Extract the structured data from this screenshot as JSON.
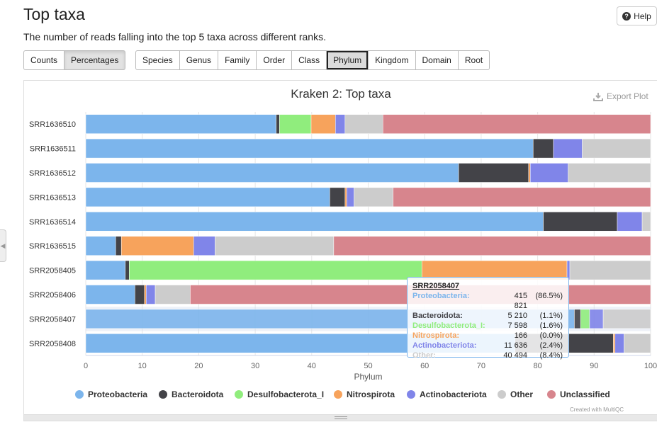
{
  "page": {
    "title": "Top taxa",
    "subtitle": "The number of reads falling into the top 5 taxa across different ranks.",
    "help_label": "Help"
  },
  "mode_buttons": [
    {
      "label": "Counts",
      "active": false
    },
    {
      "label": "Percentages",
      "active": true
    }
  ],
  "rank_buttons": [
    {
      "label": "Species",
      "active": false
    },
    {
      "label": "Genus",
      "active": false
    },
    {
      "label": "Family",
      "active": false
    },
    {
      "label": "Order",
      "active": false
    },
    {
      "label": "Class",
      "active": false
    },
    {
      "label": "Phylum",
      "active": true
    },
    {
      "label": "Kingdom",
      "active": false
    },
    {
      "label": "Domain",
      "active": false
    },
    {
      "label": "Root",
      "active": false
    }
  ],
  "export_label": "Export Plot",
  "credit": "Created with MultiQC",
  "colors": {
    "Proteobacteria": "#7cb5ec",
    "Bacteroidota": "#434348",
    "Desulfobacterota_I": "#90ed7d",
    "Nitrospirota": "#f7a35c",
    "Actinobacteriota": "#8085e9",
    "Other": "#cccccc",
    "Unclassified": "#d7858d"
  },
  "chart_data": {
    "type": "bar",
    "orientation": "horizontal",
    "stacked": true,
    "title": "Kraken 2: Top taxa",
    "xlabel": "Phylum",
    "xlim": [
      0,
      100
    ],
    "xticks": [
      0,
      10,
      20,
      30,
      40,
      50,
      60,
      70,
      80,
      90,
      100
    ],
    "legend_position": "bottom",
    "categories": [
      "SRR1636510",
      "SRR1636511",
      "SRR1636512",
      "SRR1636513",
      "SRR1636514",
      "SRR1636515",
      "SRR2058405",
      "SRR2058406",
      "SRR2058407",
      "SRR2058408"
    ],
    "highlighted_category": "SRR2058407",
    "series": [
      {
        "name": "Proteobacteria",
        "values": [
          33.7,
          79.2,
          66.0,
          43.2,
          81.0,
          5.3,
          7.0,
          8.7,
          86.5,
          76.0
        ]
      },
      {
        "name": "Bacteroidota",
        "values": [
          0.6,
          3.6,
          12.4,
          2.7,
          13.1,
          1.0,
          0.7,
          1.7,
          1.1,
          17.4
        ]
      },
      {
        "name": "Desulfobacterota_I",
        "values": [
          5.6,
          0.0,
          0.0,
          0.0,
          0.0,
          0.0,
          51.8,
          0.0,
          1.6,
          0.0
        ]
      },
      {
        "name": "Nitrospirota",
        "values": [
          4.3,
          0.0,
          0.3,
          0.3,
          0.0,
          12.8,
          25.7,
          0.3,
          0.0,
          0.3
        ]
      },
      {
        "name": "Actinobacteriota",
        "values": [
          1.7,
          5.1,
          6.7,
          1.3,
          4.4,
          3.8,
          0.5,
          1.6,
          2.4,
          1.6
        ]
      },
      {
        "name": "Other",
        "values": [
          6.7,
          12.1,
          14.6,
          6.9,
          1.5,
          21.0,
          14.3,
          6.2,
          8.4,
          4.7
        ]
      },
      {
        "name": "Unclassified",
        "values": [
          47.4,
          0.0,
          0.0,
          45.6,
          0.0,
          56.1,
          0.0,
          81.5,
          0.0,
          0.0
        ]
      }
    ]
  },
  "tooltip": {
    "sample": "SRR2058407",
    "rows": [
      {
        "name": "Proteobacteria:",
        "value": "415 821",
        "pct": "(86.5%)",
        "color": "#7cb5ec"
      },
      {
        "name": "Bacteroidota:",
        "value": "5 210",
        "pct": "(1.1%)",
        "color": "#434348"
      },
      {
        "name": "Desulfobacterota_I:",
        "value": "7 598",
        "pct": "(1.6%)",
        "color": "#90ed7d"
      },
      {
        "name": "Nitrospirota:",
        "value": "166",
        "pct": "(0.0%)",
        "color": "#f7a35c"
      },
      {
        "name": "Actinobacteriota:",
        "value": "11 636",
        "pct": "(2.4%)",
        "color": "#8085e9"
      },
      {
        "name": "Other:",
        "value": "40 494",
        "pct": "(8.4%)",
        "color": "#cccccc"
      }
    ]
  }
}
